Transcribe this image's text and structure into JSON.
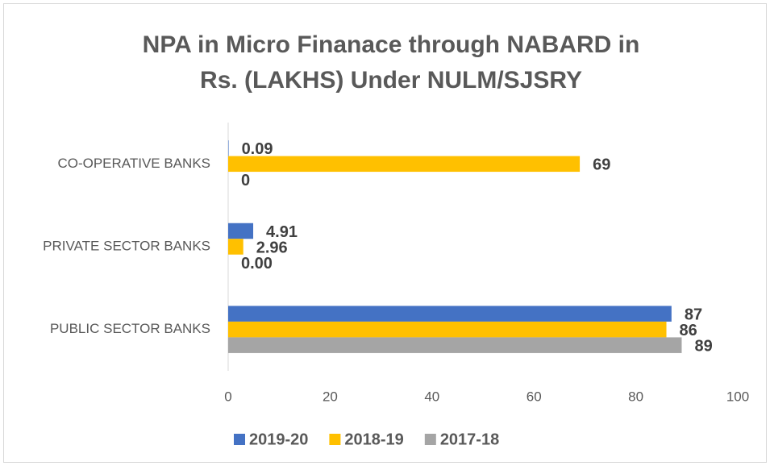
{
  "chart_data": {
    "type": "hbar",
    "title": "NPA in Micro Finanace through NABARD in Rs. (LAKHS) Under NULM/SJSRY",
    "categories": [
      "PUBLIC SECTOR BANKS",
      "PRIVATE SECTOR BANKS",
      "CO-OPERATIVE BANKS"
    ],
    "series": [
      {
        "name": "2019-20",
        "color": "#4472c4",
        "values": [
          87,
          4.91,
          0.09
        ]
      },
      {
        "name": "2018-19",
        "color": "#ffc000",
        "values": [
          86,
          2.96,
          69
        ]
      },
      {
        "name": "2017-18",
        "color": "#a5a5a5",
        "values": [
          89,
          0,
          0
        ],
        "value_labels": [
          "89",
          "0.00",
          "0"
        ]
      }
    ],
    "xlim": [
      0,
      100
    ],
    "xticks": [
      0,
      20,
      40,
      60,
      80,
      100
    ],
    "grid": false,
    "legend": "bottom"
  }
}
